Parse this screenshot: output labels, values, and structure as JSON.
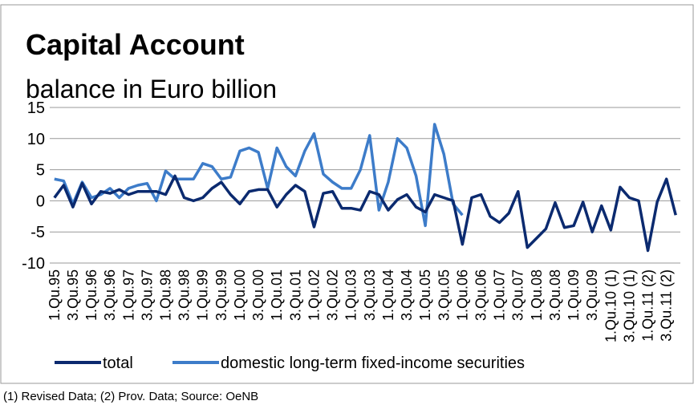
{
  "chart_data": {
    "type": "line",
    "title": "Capital Account",
    "subtitle": "balance in Euro billion",
    "footnote": "(1) Revised Data; (2) Prov. Data; Source: OeNB",
    "categories": [
      "1.Qu.95",
      null,
      "3.Qu.95",
      null,
      "1.Qu.96",
      null,
      "3.Qu.96",
      null,
      "1.Qu.97",
      null,
      "3.Qu.97",
      null,
      "1.Qu.98",
      null,
      "3.Qu.98",
      null,
      "1.Qu.99",
      null,
      "3.Qu.99",
      null,
      "1.Qu.00",
      null,
      "3.Qu.00",
      null,
      "1.Qu.01",
      null,
      "3.Qu.01",
      null,
      "1.Qu.02",
      null,
      "3.Qu.02",
      null,
      "1.Qu.03",
      null,
      "3.Qu.03",
      null,
      "1.Qu.04",
      null,
      "3.Qu.04",
      null,
      "1.Qu.05",
      null,
      "3.Qu.05",
      null,
      "1.Qu.06",
      null,
      "3.Qu.06",
      null,
      "1.Qu.07",
      null,
      "3.Qu.07",
      null,
      "1.Qu.08",
      null,
      "3.Qu.08",
      null,
      "1.Qu.09",
      null,
      "3.Qu.09",
      null,
      "1.Qu.10 (1)",
      null,
      "3.Qu.10 (1)",
      null,
      "1.Qu.11 (2)",
      null,
      "3.Qu.11 (2)",
      null
    ],
    "series": [
      {
        "name": "total",
        "color": "#0b2a6f",
        "values": [
          0.5,
          2.5,
          -1,
          2.8,
          -0.5,
          1.5,
          1.2,
          1.8,
          1,
          1.5,
          1.5,
          1.5,
          1,
          4,
          0.5,
          0,
          0.5,
          2,
          3,
          1,
          -0.5,
          1.5,
          1.8,
          1.8,
          -1,
          1,
          2.5,
          1.5,
          -4.2,
          1.2,
          1.5,
          -1.2,
          -1.2,
          -1.5,
          1.5,
          1,
          -1.5,
          0.2,
          1,
          -1,
          -1.8,
          1,
          0.5,
          0,
          -7,
          0.5,
          1,
          -2.5,
          -3.5,
          -2,
          1.5,
          -7.5,
          -6,
          -4.5,
          -0.3,
          -4.3,
          -4,
          -0.2,
          -5,
          -0.8,
          -4.7,
          2.2,
          0.5,
          0,
          -8,
          -0.2,
          3.5,
          -2.3
        ]
      },
      {
        "name": "domestic long-term fixed-income securities",
        "color": "#3d7cc9",
        "values": [
          3.5,
          3.2,
          -0.5,
          3,
          0.5,
          1,
          2,
          0.5,
          2,
          2.5,
          2.8,
          0,
          4.8,
          3.5,
          3.5,
          3.5,
          6,
          5.5,
          3.5,
          3.8,
          8,
          8.5,
          7.8,
          2,
          8.5,
          5.5,
          4,
          8,
          10.8,
          4.3,
          3,
          2,
          2,
          5,
          10.5,
          -1.5,
          3,
          10,
          8.5,
          4,
          -4,
          12.3,
          7.5,
          -0.5,
          -2.3,
          null,
          null,
          null,
          null,
          null,
          null,
          null,
          null,
          null,
          null,
          null,
          null,
          null,
          null,
          null,
          null,
          null,
          null,
          null,
          null,
          null,
          null,
          null
        ]
      }
    ],
    "ylim": [
      -10,
      15
    ],
    "yticks": [
      -10,
      -5,
      0,
      5,
      10,
      15
    ],
    "grid": true
  }
}
